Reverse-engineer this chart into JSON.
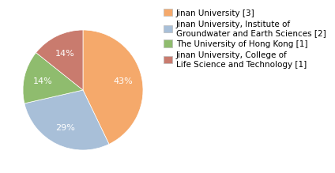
{
  "labels": [
    "Jinan University [3]",
    "Jinan University, Institute of\nGroundwater and Earth Sciences [2]",
    "The University of Hong Kong [1]",
    "Jinan University, College of\nLife Science and Technology [1]"
  ],
  "values": [
    3,
    2,
    1,
    1
  ],
  "colors": [
    "#f5a96b",
    "#a8bfd8",
    "#8fbc6e",
    "#c97b6e"
  ],
  "background_color": "#ffffff",
  "text_color": "#ffffff",
  "autopct_fontsize": 8,
  "legend_fontsize": 7.5
}
